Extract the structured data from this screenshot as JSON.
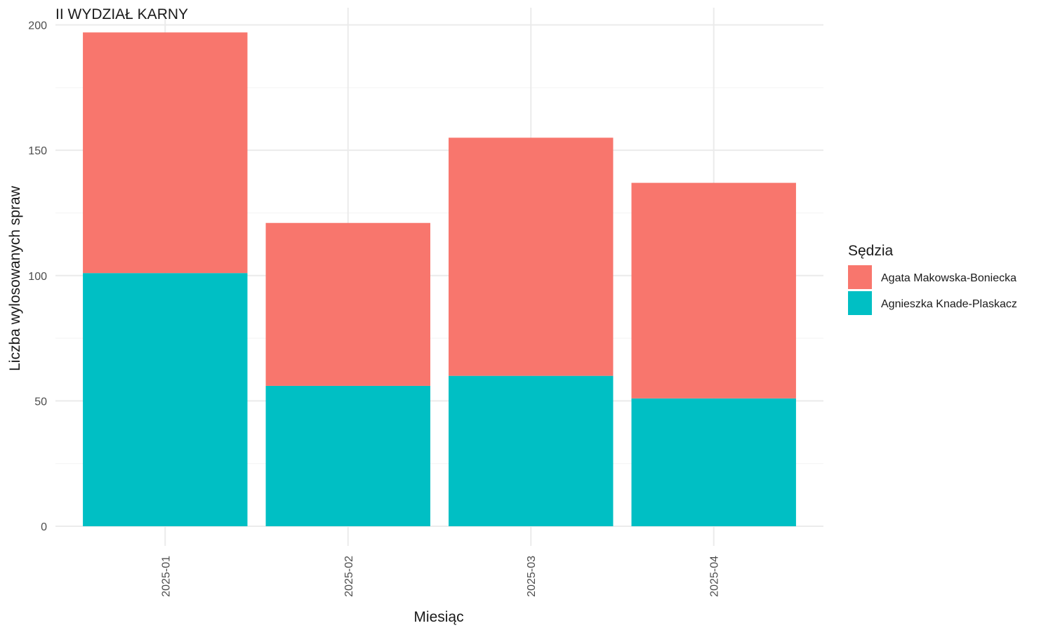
{
  "chart_data": {
    "type": "bar",
    "stacked": true,
    "title": "II WYDZIAŁ KARNY",
    "xlabel": "Miesiąc",
    "ylabel": "Liczba wylosowanych spraw",
    "categories": [
      "2025-01",
      "2025-02",
      "2025-03",
      "2025-04"
    ],
    "series": [
      {
        "name": "Agnieszka Knade-Plaskacz",
        "color": "#00BFC4",
        "values": [
          101,
          56,
          60,
          51
        ]
      },
      {
        "name": "Agata Makowska-Boniecka",
        "color": "#F8766D",
        "values": [
          96,
          65,
          95,
          86
        ]
      }
    ],
    "ylim": [
      0,
      200
    ],
    "yticks": [
      0,
      50,
      100,
      150,
      200
    ],
    "grid": true,
    "x_tick_rotation": "vertical",
    "legend": {
      "title": "Sędzia",
      "position": "right",
      "order": [
        "Agata Makowska-Boniecka",
        "Agnieszka Knade-Plaskacz"
      ]
    }
  }
}
